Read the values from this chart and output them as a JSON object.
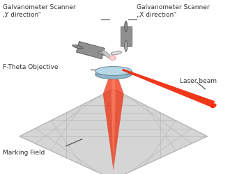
{
  "bg_color": "#ffffff",
  "grid_color": "#b8b8b8",
  "grid_fill": "#d5d5d5",
  "scanner_color": "#909090",
  "scanner_dark": "#707070",
  "scanner_light": "#bbbbbb",
  "lens_fill": "#b8d8e8",
  "lens_fill2": "#90b8cc",
  "lens_edge": "#7090a0",
  "laser_color": "#ee2200",
  "laser_alpha": 0.9,
  "annotation_color": "#333333",
  "line_color": "#444444",
  "labels": {
    "y_scanner": "Galvanometer Scanner\n„Y direction“",
    "x_scanner": "Galvanometer Scanner\n„X direction“",
    "f_theta": "F-Theta Objective",
    "laser_beam": "Laser beam",
    "marking_field": "Marking Field"
  },
  "figsize": [
    3.3,
    2.5
  ],
  "dpi": 100
}
